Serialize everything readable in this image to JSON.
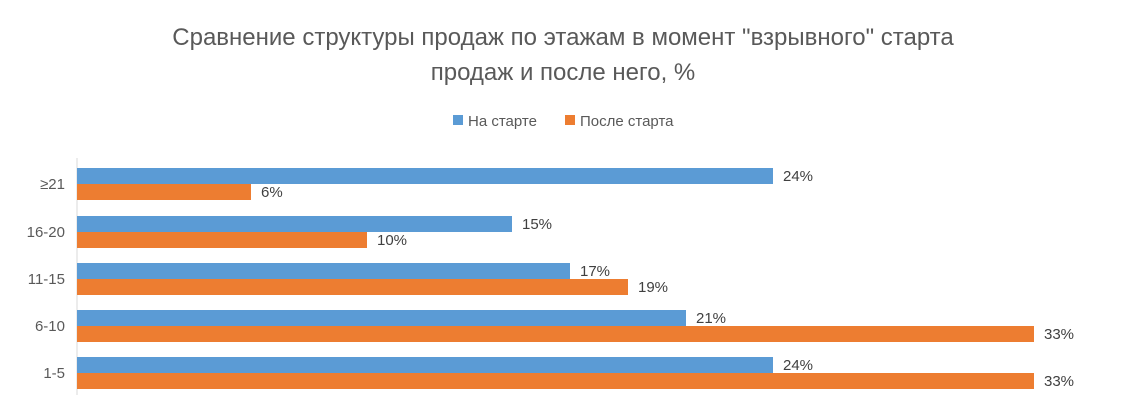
{
  "chart_data": {
    "type": "bar",
    "orientation": "horizontal",
    "title_line1": "Сравнение структуры продаж по этажам в момент \"взрывного\" старта",
    "title_line2": "продаж и после него, %",
    "categories": [
      "≥21",
      "16-20",
      "11-15",
      "6-10",
      "1-5"
    ],
    "series": [
      {
        "name": "На старте",
        "color": "#5B9BD5",
        "values": [
          24,
          15,
          17,
          21,
          24
        ],
        "labels": [
          "24%",
          "15%",
          "17%",
          "21%",
          "24%"
        ]
      },
      {
        "name": "После старта",
        "color": "#ED7D31",
        "values": [
          6,
          10,
          19,
          33,
          33
        ],
        "labels": [
          "6%",
          "10%",
          "19%",
          "33%",
          "33%"
        ]
      }
    ],
    "xlim": [
      0,
      35
    ],
    "grid": false,
    "legend_position": "top"
  }
}
